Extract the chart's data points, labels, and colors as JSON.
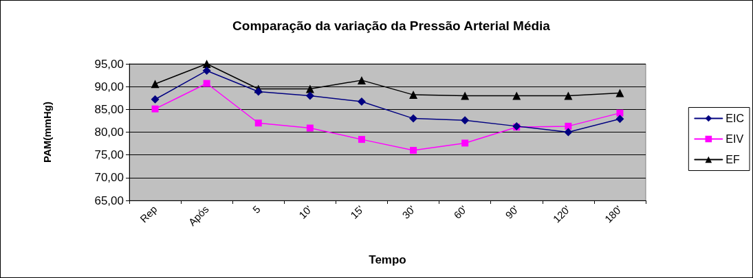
{
  "chart_data": {
    "type": "line",
    "title": "Comparação da variação da Pressão Arterial Média",
    "xlabel": "Tempo",
    "ylabel": "PAM(mmHg)",
    "categories": [
      "Rep",
      "Após",
      "5",
      "10'",
      "15'",
      "30'",
      "60'",
      "90'",
      "120'",
      "180'"
    ],
    "series": [
      {
        "name": "EIC",
        "color": "#000080",
        "marker": "diamond",
        "values": [
          87.2,
          93.5,
          88.9,
          88.0,
          86.7,
          83.0,
          82.6,
          81.3,
          80.0,
          82.9
        ]
      },
      {
        "name": "EIV",
        "color": "#ff00ff",
        "marker": "square",
        "values": [
          85.1,
          90.7,
          82.0,
          80.9,
          78.4,
          76.0,
          77.6,
          81.1,
          81.3,
          84.2
        ]
      },
      {
        "name": "EF",
        "color": "#000000",
        "marker": "triangle",
        "values": [
          90.6,
          95.0,
          89.5,
          89.5,
          91.4,
          88.2,
          88.0,
          88.0,
          88.0,
          88.6
        ]
      }
    ],
    "ylim": [
      65,
      95
    ],
    "yticks": [
      {
        "value": 65,
        "label": "65,00"
      },
      {
        "value": 70,
        "label": "70,00"
      },
      {
        "value": 75,
        "label": "75,00"
      },
      {
        "value": 80,
        "label": "80,00"
      },
      {
        "value": 85,
        "label": "85,00"
      },
      {
        "value": 90,
        "label": "90,00"
      },
      {
        "value": 95,
        "label": "95,00"
      }
    ],
    "grid": "y",
    "legend": "right",
    "line_style": "solid"
  }
}
